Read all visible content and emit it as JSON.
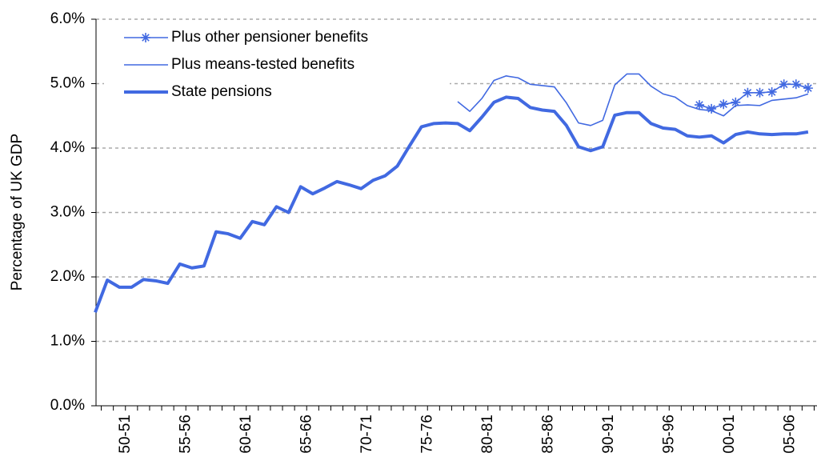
{
  "chart_data": {
    "type": "line",
    "y_label": "Percentage of UK GDP",
    "categories": [
      null,
      null,
      "50-51",
      null,
      null,
      null,
      null,
      "55-56",
      null,
      null,
      null,
      null,
      "60-61",
      null,
      null,
      null,
      null,
      "65-66",
      null,
      null,
      null,
      null,
      "70-71",
      null,
      null,
      null,
      null,
      "75-76",
      null,
      null,
      null,
      null,
      "80-81",
      null,
      null,
      null,
      null,
      "85-86",
      null,
      null,
      null,
      null,
      "90-91",
      null,
      null,
      null,
      null,
      "95-96",
      null,
      null,
      null,
      null,
      "00-01",
      null,
      null,
      null,
      null,
      "05-06",
      null,
      null
    ],
    "series": [
      {
        "name": "Plus other pensioner benefits",
        "color": "#4169e1",
        "marker": "star",
        "values": [
          null,
          null,
          null,
          null,
          null,
          null,
          null,
          null,
          null,
          null,
          null,
          null,
          null,
          null,
          null,
          null,
          null,
          null,
          null,
          null,
          null,
          null,
          null,
          null,
          null,
          null,
          null,
          null,
          null,
          null,
          null,
          null,
          null,
          null,
          null,
          null,
          null,
          null,
          null,
          null,
          null,
          null,
          null,
          null,
          null,
          null,
          null,
          null,
          null,
          null,
          4.67,
          4.61,
          4.68,
          4.71,
          4.86,
          4.86,
          4.87,
          4.99,
          4.99,
          4.93
        ]
      },
      {
        "name": "Plus means-tested benefits",
        "color": "#4169e1",
        "values": [
          null,
          null,
          null,
          null,
          null,
          null,
          null,
          null,
          null,
          null,
          null,
          null,
          null,
          null,
          null,
          null,
          null,
          null,
          null,
          null,
          null,
          null,
          null,
          null,
          null,
          null,
          null,
          null,
          null,
          null,
          4.72,
          4.57,
          4.77,
          5.05,
          5.12,
          5.09,
          4.99,
          4.97,
          4.95,
          4.7,
          4.39,
          4.35,
          4.43,
          4.98,
          5.15,
          5.15,
          4.96,
          4.84,
          4.79,
          4.66,
          4.6,
          4.58,
          4.5,
          4.66,
          4.67,
          4.66,
          4.74,
          4.76,
          4.78,
          4.84
        ]
      },
      {
        "name": "State pensions",
        "color": "#4169e1",
        "width": "thick",
        "values": [
          1.45,
          1.95,
          1.84,
          1.84,
          1.96,
          1.94,
          1.9,
          2.2,
          2.14,
          2.17,
          2.7,
          2.67,
          2.6,
          2.86,
          2.81,
          3.09,
          3.0,
          3.4,
          3.29,
          3.38,
          3.48,
          3.43,
          3.37,
          3.5,
          3.57,
          3.72,
          4.03,
          4.33,
          4.38,
          4.39,
          4.38,
          4.27,
          4.48,
          4.71,
          4.79,
          4.77,
          4.63,
          4.59,
          4.57,
          4.35,
          4.02,
          3.96,
          4.02,
          4.51,
          4.55,
          4.55,
          4.38,
          4.31,
          4.29,
          4.19,
          4.17,
          4.19,
          4.08,
          4.21,
          4.25,
          4.22,
          4.21,
          4.22,
          4.22,
          4.25
        ]
      }
    ],
    "ylim": [
      0,
      6
    ],
    "yticks": [
      {
        "value": 0,
        "label": "0.0%"
      },
      {
        "value": 1,
        "label": "1.0%"
      },
      {
        "value": 2,
        "label": "2.0%"
      },
      {
        "value": 3,
        "label": "3.0%"
      },
      {
        "value": 4,
        "label": "4.0%"
      },
      {
        "value": 5,
        "label": "5.0%"
      },
      {
        "value": 6,
        "label": "6.0%"
      }
    ],
    "grid": true,
    "legend": "top-left"
  }
}
